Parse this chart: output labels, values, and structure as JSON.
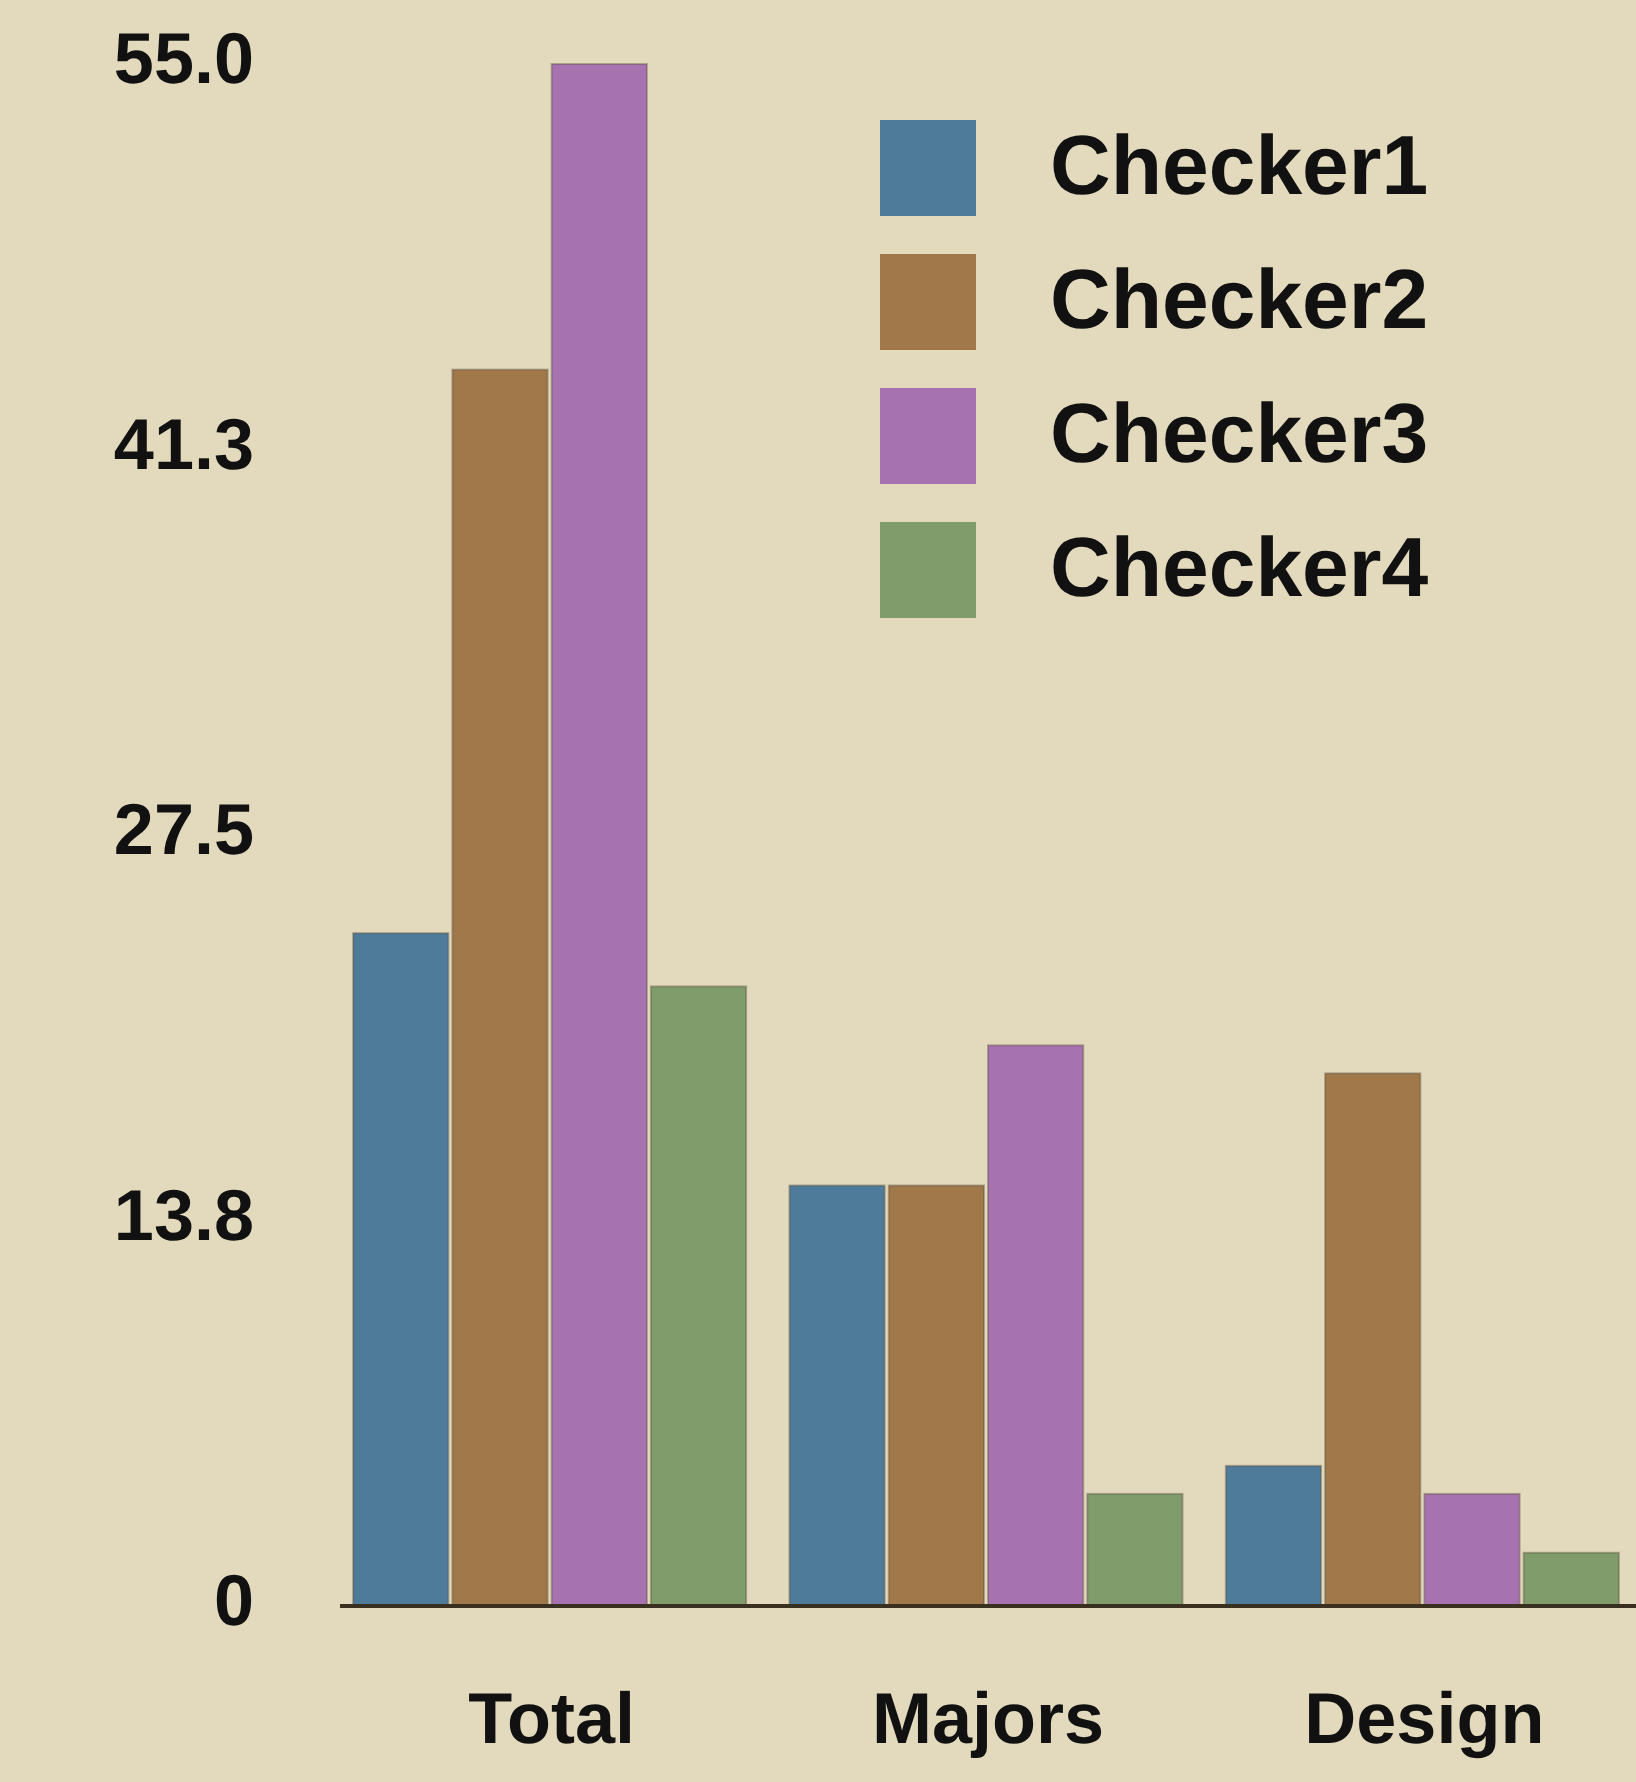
{
  "chart_data": {
    "type": "bar",
    "categories": [
      "Total",
      "Majors",
      "Design"
    ],
    "series": [
      {
        "name": "Checker1",
        "color": "#4f7b9a",
        "values": [
          24,
          15,
          5
        ]
      },
      {
        "name": "Checker2",
        "color": "#a0784a",
        "values": [
          44.1,
          15,
          19
        ]
      },
      {
        "name": "Checker3",
        "color": "#a673b0",
        "values": [
          55,
          20,
          4
        ]
      },
      {
        "name": "Checker4",
        "color": "#7f9c6a",
        "values": [
          22.1,
          4,
          1.9
        ]
      }
    ],
    "ylim": [
      0,
      55
    ],
    "yticks": [
      0,
      {
        "value": 13.75,
        "label": "13.8"
      },
      {
        "value": 27.5,
        "label": "27.5"
      },
      {
        "value": 41.25,
        "label": "41.3"
      },
      {
        "value": 55,
        "label": "55.0"
      }
    ],
    "grid": false,
    "legend": "top right"
  }
}
